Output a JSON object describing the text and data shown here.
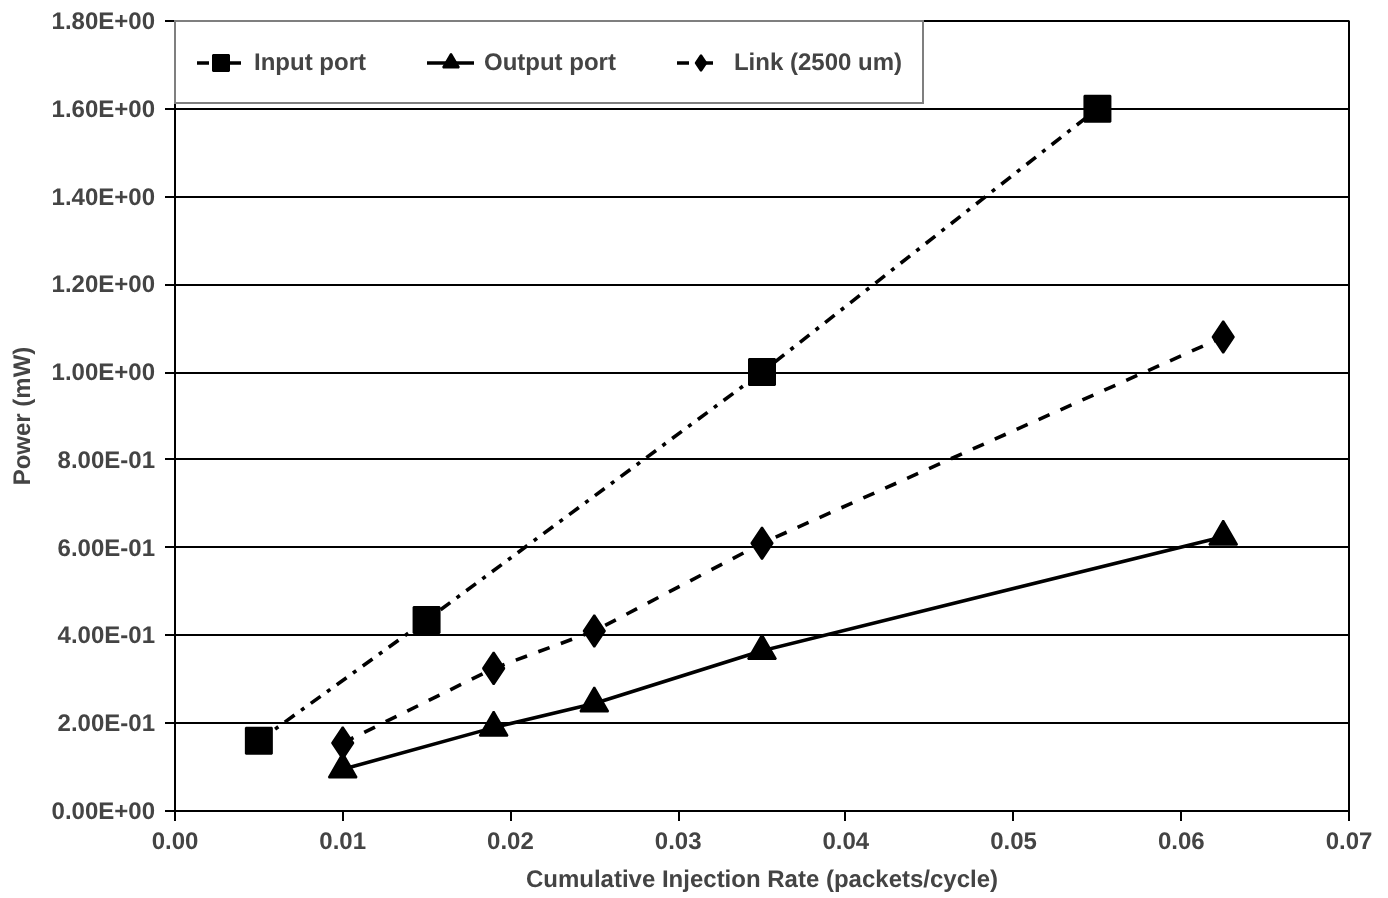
{
  "chart_data": {
    "type": "line",
    "xlabel": "Cumulative Injection Rate (packets/cycle)",
    "ylabel": "Power (mW)",
    "xlim": [
      0,
      0.07
    ],
    "ylim": [
      0,
      1.8
    ],
    "xticks": [
      {
        "value": 0,
        "label": "0.00"
      },
      {
        "value": 0.01,
        "label": "0.01"
      },
      {
        "value": 0.02,
        "label": "0.02"
      },
      {
        "value": 0.03,
        "label": "0.03"
      },
      {
        "value": 0.04,
        "label": "0.04"
      },
      {
        "value": 0.05,
        "label": "0.05"
      },
      {
        "value": 0.06,
        "label": "0.06"
      },
      {
        "value": 0.07,
        "label": "0.07"
      }
    ],
    "yticks": [
      {
        "value": 0,
        "label": "0.00E+00"
      },
      {
        "value": 0.2,
        "label": "2.00E-01"
      },
      {
        "value": 0.4,
        "label": "4.00E-01"
      },
      {
        "value": 0.6,
        "label": "6.00E-01"
      },
      {
        "value": 0.8,
        "label": "8.00E-01"
      },
      {
        "value": 1.0,
        "label": "1.00E+00"
      },
      {
        "value": 1.2,
        "label": "1.20E+00"
      },
      {
        "value": 1.4,
        "label": "1.40E+00"
      },
      {
        "value": 1.6,
        "label": "1.60E+00"
      },
      {
        "value": 1.8,
        "label": "1.80E+00"
      }
    ],
    "grid": "y",
    "legend": "top left",
    "series": [
      {
        "name": "Input port",
        "color": "#000000",
        "marker": "square",
        "line_style": "dashdot",
        "x": [
          0.005,
          0.015,
          0.035,
          0.055
        ],
        "values": [
          0.16,
          0.435,
          1.0,
          1.6
        ]
      },
      {
        "name": "Output port",
        "color": "#000000",
        "marker": "triangle",
        "line_style": "solid",
        "x": [
          0.01,
          0.019,
          0.025,
          0.035,
          0.0625
        ],
        "values": [
          0.095,
          0.19,
          0.245,
          0.365,
          0.625
        ]
      },
      {
        "name": "Link (2500 um)",
        "color": "#000000",
        "marker": "diamond",
        "line_style": "dashed",
        "x": [
          0.01,
          0.019,
          0.025,
          0.035,
          0.0625
        ],
        "values": [
          0.155,
          0.325,
          0.41,
          0.61,
          1.08
        ]
      }
    ]
  }
}
